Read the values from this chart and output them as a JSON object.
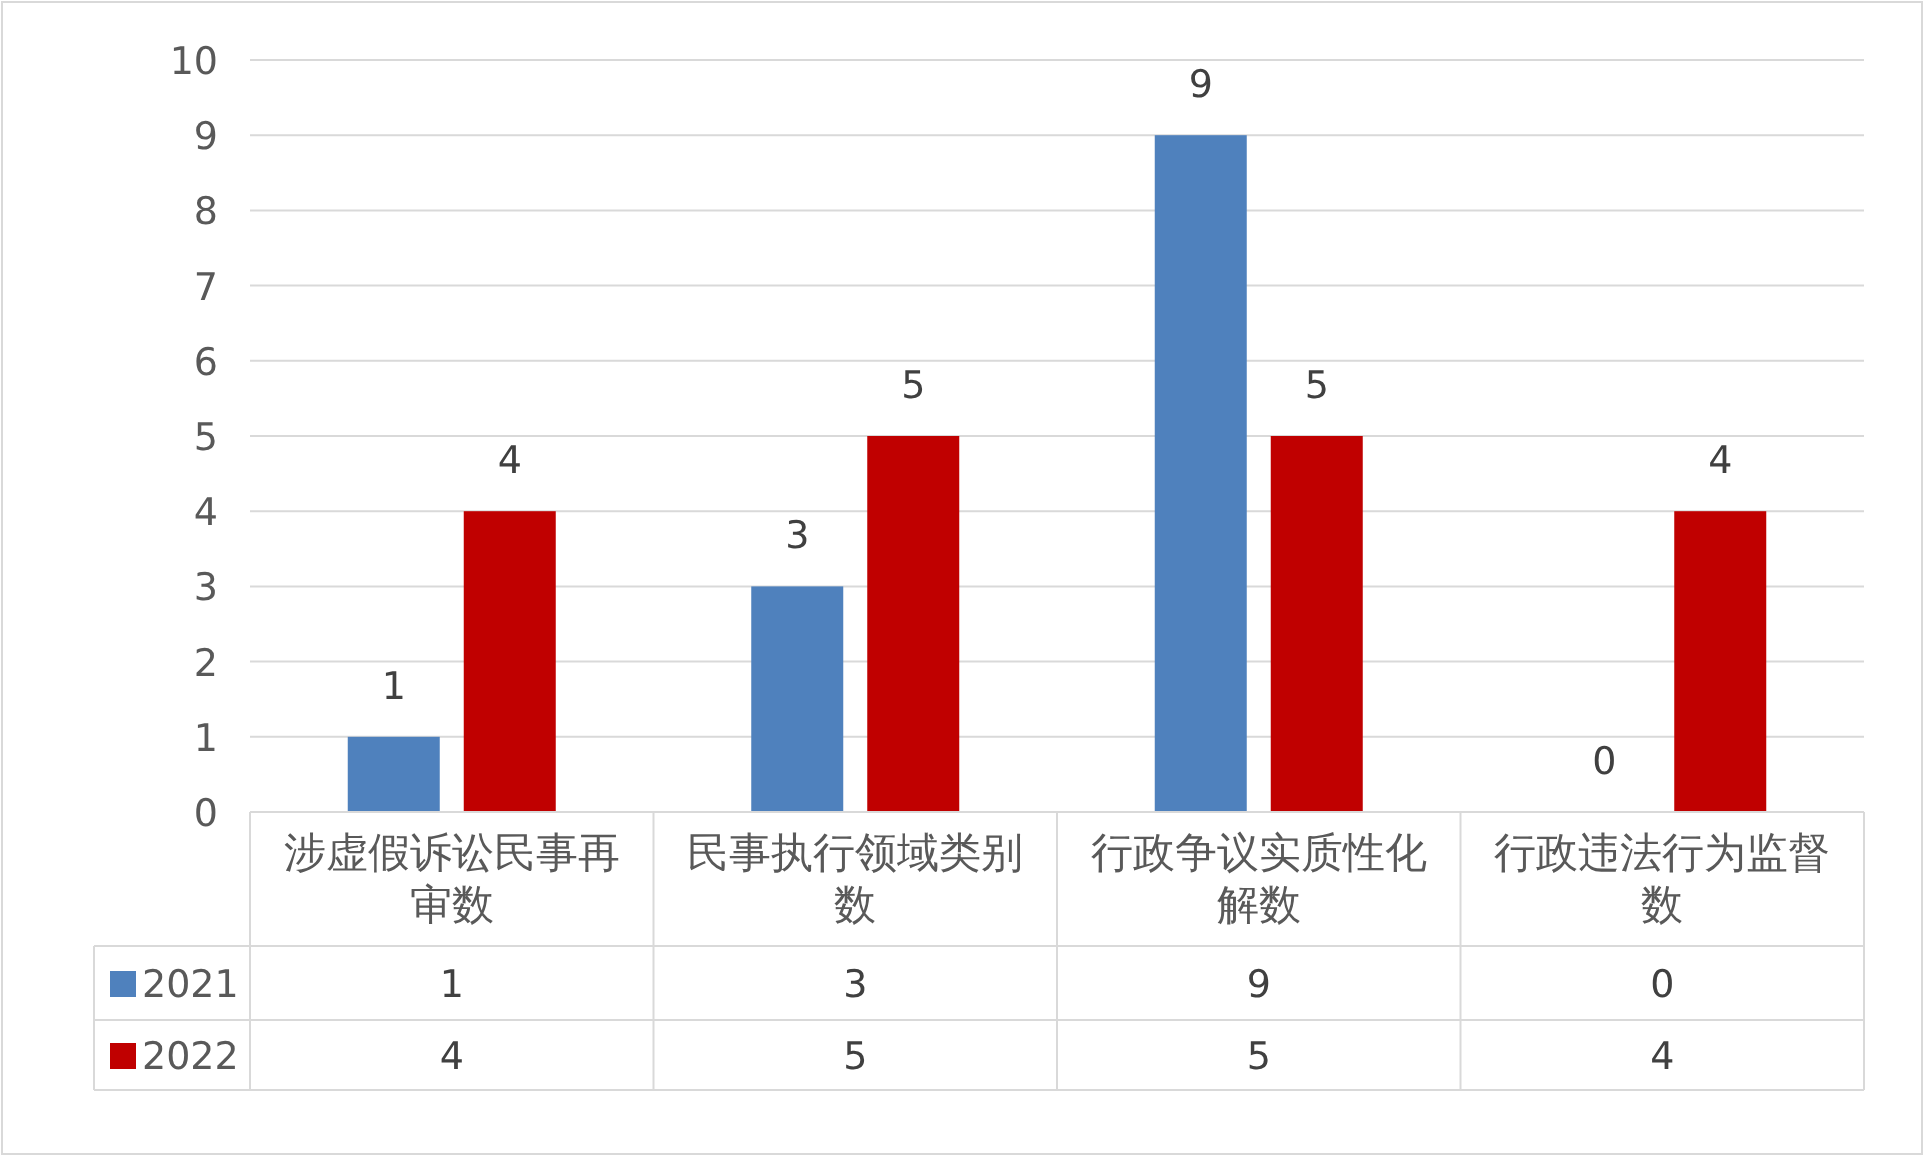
{
  "chart_data": {
    "type": "bar",
    "categories": [
      "涉虚假诉讼民事再审数",
      "民事执行领域类别数",
      "行政争议实质性化解数",
      "行政违法行为监督数"
    ],
    "series": [
      {
        "name": "2021",
        "color": "#4f81bd",
        "values": [
          1,
          3,
          9,
          0
        ],
        "value_labels": [
          "1",
          "3",
          "9",
          "0"
        ]
      },
      {
        "name": "2022",
        "color": "#c00000",
        "values": [
          4,
          5,
          5,
          4
        ],
        "value_labels": [
          "4",
          "5",
          "5",
          "4"
        ]
      }
    ],
    "ylim": [
      0,
      10
    ],
    "yticks": [
      0,
      1,
      2,
      3,
      4,
      5,
      6,
      7,
      8,
      9,
      10
    ],
    "grid": "y",
    "data_labels": true,
    "legend": "bottom"
  }
}
